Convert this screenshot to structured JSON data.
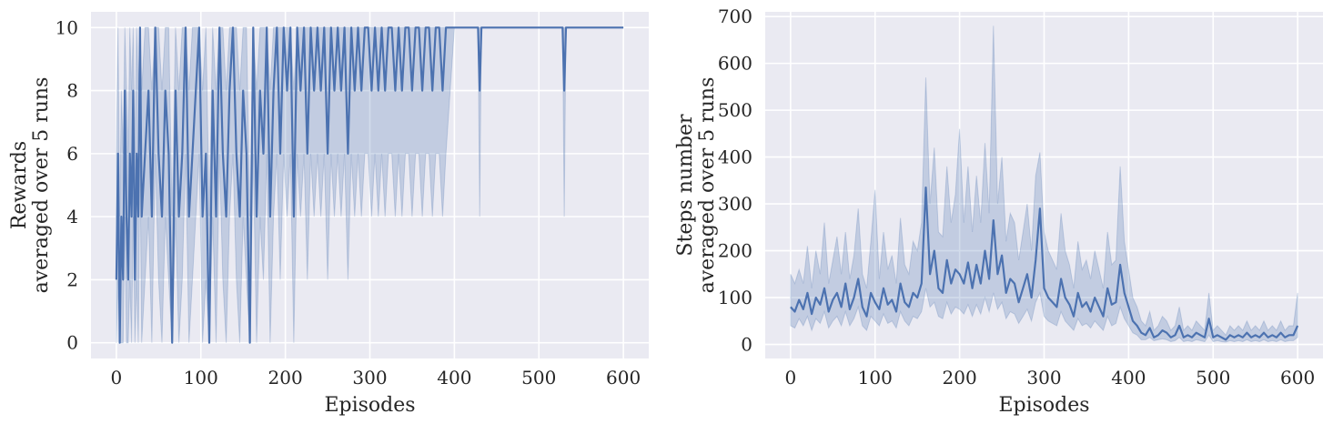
{
  "colors": {
    "background": "#eaeaf2",
    "grid": "#ffffff",
    "line": "#4c72b0",
    "band": "#4c72b0"
  },
  "chart_data": [
    {
      "type": "line",
      "xlabel": "Episodes",
      "ylabel": [
        "Rewards",
        "averaged over 5 runs"
      ],
      "xlim": [
        -30,
        630
      ],
      "ylim": [
        -0.5,
        10.5
      ],
      "xticks": [
        0,
        100,
        200,
        300,
        400,
        500,
        600
      ],
      "yticks": [
        0,
        2,
        4,
        6,
        8,
        10
      ],
      "grid": true,
      "series": [
        {
          "values_description_free": true,
          "x": [
            0,
            2,
            4,
            6,
            8,
            10,
            12,
            14,
            16,
            18,
            20,
            22,
            24,
            26,
            28,
            30,
            34,
            38,
            42,
            46,
            50,
            54,
            58,
            62,
            66,
            70,
            74,
            78,
            82,
            86,
            90,
            94,
            98,
            102,
            106,
            110,
            114,
            118,
            122,
            126,
            130,
            134,
            138,
            142,
            146,
            150,
            154,
            158,
            162,
            166,
            170,
            174,
            178,
            182,
            186,
            190,
            194,
            198,
            202,
            206,
            210,
            214,
            218,
            222,
            226,
            230,
            234,
            238,
            242,
            246,
            250,
            254,
            258,
            262,
            266,
            270,
            274,
            278,
            282,
            286,
            290,
            294,
            298,
            302,
            306,
            310,
            314,
            318,
            322,
            326,
            330,
            334,
            338,
            342,
            346,
            350,
            354,
            358,
            362,
            366,
            370,
            374,
            378,
            382,
            386,
            390,
            400,
            420,
            428,
            430,
            432,
            450,
            500,
            528,
            530,
            532,
            560,
            600
          ],
          "y": [
            2,
            6,
            0,
            4,
            2,
            8,
            4,
            2,
            6,
            4,
            8,
            2,
            6,
            4,
            10,
            4,
            6,
            8,
            4,
            10,
            6,
            4,
            8,
            6,
            0,
            8,
            4,
            6,
            10,
            4,
            6,
            8,
            10,
            4,
            6,
            0,
            8,
            4,
            10,
            6,
            4,
            8,
            10,
            6,
            4,
            8,
            6,
            0,
            10,
            4,
            8,
            6,
            10,
            4,
            8,
            10,
            6,
            10,
            8,
            10,
            4,
            10,
            8,
            10,
            6,
            10,
            8,
            10,
            8,
            10,
            6,
            10,
            8,
            10,
            8,
            10,
            6,
            10,
            8,
            10,
            8,
            10,
            10,
            8,
            10,
            8,
            10,
            8,
            10,
            10,
            8,
            10,
            8,
            10,
            10,
            8,
            10,
            10,
            8,
            10,
            10,
            8,
            10,
            10,
            8,
            10,
            10,
            10,
            10,
            8,
            10,
            10,
            10,
            10,
            8,
            10,
            10,
            10
          ],
          "lower": [
            0,
            2,
            0,
            0,
            0,
            4,
            0,
            0,
            2,
            0,
            4,
            0,
            2,
            0,
            6,
            0,
            2,
            4,
            0,
            6,
            2,
            0,
            4,
            2,
            0,
            4,
            0,
            2,
            6,
            0,
            2,
            4,
            6,
            0,
            2,
            0,
            4,
            0,
            6,
            2,
            0,
            4,
            6,
            2,
            0,
            4,
            2,
            0,
            6,
            0,
            4,
            2,
            6,
            0,
            4,
            6,
            2,
            6,
            4,
            6,
            0,
            6,
            4,
            6,
            2,
            6,
            4,
            6,
            4,
            6,
            2,
            6,
            4,
            6,
            4,
            6,
            2,
            6,
            4,
            6,
            4,
            6,
            6,
            4,
            6,
            4,
            6,
            4,
            6,
            6,
            4,
            6,
            4,
            6,
            6,
            4,
            6,
            6,
            4,
            6,
            6,
            4,
            6,
            6,
            4,
            6,
            10,
            10,
            10,
            4,
            10,
            10,
            10,
            10,
            4,
            10,
            10,
            10
          ],
          "upper": [
            6,
            10,
            4,
            8,
            6,
            10,
            8,
            6,
            10,
            8,
            10,
            6,
            10,
            8,
            10,
            8,
            10,
            10,
            8,
            10,
            10,
            8,
            10,
            10,
            4,
            10,
            8,
            10,
            10,
            8,
            10,
            10,
            10,
            8,
            10,
            4,
            10,
            8,
            10,
            10,
            8,
            10,
            10,
            10,
            8,
            10,
            10,
            4,
            10,
            8,
            10,
            10,
            10,
            8,
            10,
            10,
            10,
            10,
            10,
            10,
            8,
            10,
            10,
            10,
            10,
            10,
            10,
            10,
            10,
            10,
            10,
            10,
            10,
            10,
            10,
            10,
            10,
            10,
            10,
            10,
            10,
            10,
            10,
            10,
            10,
            10,
            10,
            10,
            10,
            10,
            10,
            10,
            10,
            10,
            10,
            10,
            10,
            10,
            10,
            10,
            10,
            10,
            10,
            10,
            10,
            10,
            10,
            10,
            10,
            10,
            10,
            10,
            10,
            10,
            10,
            10,
            10,
            10
          ]
        }
      ]
    },
    {
      "type": "line",
      "xlabel": "Episodes",
      "ylabel": [
        "Steps number",
        "averaged over 5 runs"
      ],
      "xlim": [
        -30,
        630
      ],
      "ylim": [
        -30,
        710
      ],
      "xticks": [
        0,
        100,
        200,
        300,
        400,
        500,
        600
      ],
      "yticks": [
        0,
        100,
        200,
        300,
        400,
        500,
        600,
        700
      ],
      "grid": true,
      "series": [
        {
          "x": [
            0,
            5,
            10,
            15,
            20,
            25,
            30,
            35,
            40,
            45,
            50,
            55,
            60,
            65,
            70,
            75,
            80,
            85,
            90,
            95,
            100,
            105,
            110,
            115,
            120,
            125,
            130,
            135,
            140,
            145,
            150,
            155,
            160,
            165,
            170,
            175,
            180,
            185,
            190,
            195,
            200,
            205,
            210,
            215,
            220,
            225,
            230,
            235,
            240,
            245,
            250,
            255,
            260,
            265,
            270,
            275,
            280,
            285,
            290,
            295,
            300,
            305,
            310,
            315,
            320,
            325,
            330,
            335,
            340,
            345,
            350,
            355,
            360,
            365,
            370,
            375,
            380,
            385,
            390,
            395,
            400,
            405,
            410,
            415,
            420,
            425,
            430,
            435,
            440,
            445,
            450,
            455,
            460,
            465,
            470,
            475,
            480,
            485,
            490,
            495,
            500,
            505,
            510,
            515,
            520,
            525,
            530,
            535,
            540,
            545,
            550,
            555,
            560,
            565,
            570,
            575,
            580,
            585,
            590,
            595,
            600
          ],
          "y": [
            80,
            70,
            95,
            75,
            110,
            65,
            100,
            85,
            120,
            70,
            95,
            110,
            80,
            130,
            75,
            100,
            140,
            80,
            60,
            110,
            90,
            75,
            120,
            85,
            95,
            70,
            130,
            90,
            80,
            110,
            100,
            130,
            335,
            150,
            200,
            120,
            110,
            180,
            130,
            160,
            150,
            130,
            175,
            120,
            170,
            130,
            200,
            140,
            265,
            150,
            190,
            110,
            140,
            130,
            90,
            120,
            150,
            100,
            180,
            290,
            120,
            100,
            90,
            80,
            140,
            100,
            85,
            60,
            110,
            80,
            90,
            70,
            100,
            80,
            60,
            120,
            85,
            90,
            170,
            110,
            80,
            50,
            40,
            25,
            20,
            35,
            15,
            20,
            30,
            25,
            15,
            20,
            40,
            15,
            20,
            15,
            25,
            20,
            15,
            55,
            15,
            20,
            15,
            10,
            20,
            15,
            20,
            15,
            25,
            15,
            20,
            15,
            25,
            15,
            20,
            15,
            25,
            15,
            20,
            20,
            40
          ],
          "lower": [
            40,
            35,
            55,
            40,
            60,
            30,
            55,
            45,
            70,
            35,
            50,
            60,
            40,
            70,
            40,
            55,
            80,
            40,
            30,
            60,
            50,
            40,
            65,
            45,
            50,
            35,
            70,
            50,
            40,
            60,
            55,
            70,
            120,
            80,
            90,
            60,
            55,
            90,
            65,
            80,
            75,
            65,
            85,
            60,
            85,
            65,
            100,
            70,
            110,
            75,
            90,
            55,
            70,
            65,
            45,
            60,
            75,
            50,
            90,
            110,
            60,
            50,
            45,
            40,
            70,
            50,
            40,
            30,
            55,
            40,
            45,
            35,
            50,
            40,
            30,
            60,
            40,
            45,
            80,
            55,
            40,
            25,
            20,
            10,
            10,
            15,
            8,
            10,
            12,
            10,
            6,
            8,
            15,
            6,
            8,
            6,
            10,
            8,
            6,
            20,
            6,
            8,
            6,
            5,
            8,
            6,
            8,
            6,
            10,
            6,
            8,
            6,
            10,
            6,
            8,
            6,
            10,
            6,
            8,
            8,
            15
          ],
          "upper": [
            150,
            130,
            160,
            130,
            210,
            120,
            200,
            150,
            260,
            130,
            180,
            230,
            150,
            240,
            140,
            190,
            290,
            150,
            120,
            220,
            330,
            140,
            240,
            160,
            190,
            130,
            270,
            170,
            150,
            220,
            200,
            260,
            570,
            300,
            420,
            240,
            230,
            380,
            260,
            320,
            460,
            260,
            380,
            240,
            360,
            260,
            430,
            280,
            680,
            300,
            400,
            220,
            280,
            260,
            180,
            240,
            300,
            200,
            360,
            410,
            240,
            200,
            180,
            160,
            280,
            200,
            170,
            120,
            220,
            160,
            180,
            140,
            200,
            160,
            120,
            240,
            170,
            180,
            380,
            220,
            160,
            100,
            80,
            50,
            40,
            70,
            30,
            40,
            60,
            50,
            30,
            40,
            80,
            30,
            40,
            30,
            50,
            40,
            30,
            110,
            30,
            40,
            30,
            20,
            40,
            30,
            40,
            30,
            50,
            30,
            40,
            30,
            50,
            30,
            40,
            30,
            50,
            30,
            40,
            40,
            110
          ]
        }
      ]
    }
  ]
}
